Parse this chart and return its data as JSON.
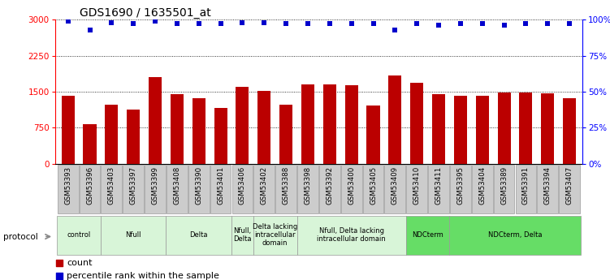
{
  "title": "GDS1690 / 1635501_at",
  "samples": [
    "GSM53393",
    "GSM53396",
    "GSM53403",
    "GSM53397",
    "GSM53399",
    "GSM53408",
    "GSM53390",
    "GSM53401",
    "GSM53406",
    "GSM53402",
    "GSM53388",
    "GSM53398",
    "GSM53392",
    "GSM53400",
    "GSM53405",
    "GSM53409",
    "GSM53410",
    "GSM53411",
    "GSM53395",
    "GSM53404",
    "GSM53389",
    "GSM53391",
    "GSM53394",
    "GSM53407"
  ],
  "counts": [
    1420,
    830,
    1230,
    1120,
    1800,
    1450,
    1370,
    1160,
    1600,
    1510,
    1230,
    1660,
    1650,
    1640,
    1210,
    1840,
    1690,
    1450,
    1410,
    1420,
    1480,
    1480,
    1460,
    1360
  ],
  "percentiles": [
    99,
    93,
    98,
    97,
    99,
    97,
    97,
    97,
    98,
    98,
    97,
    97,
    97,
    97,
    97,
    93,
    97,
    96,
    97,
    97,
    96,
    97,
    97,
    97
  ],
  "groups": [
    {
      "label": "control",
      "start": 0,
      "end": 2,
      "color": "#d8f5d8"
    },
    {
      "label": "Nfull",
      "start": 2,
      "end": 5,
      "color": "#d8f5d8"
    },
    {
      "label": "Delta",
      "start": 5,
      "end": 8,
      "color": "#d8f5d8"
    },
    {
      "label": "Nfull,\nDelta",
      "start": 8,
      "end": 9,
      "color": "#d8f5d8"
    },
    {
      "label": "Delta lacking\nintracellular\ndomain",
      "start": 9,
      "end": 11,
      "color": "#d8f5d8"
    },
    {
      "label": "Nfull, Delta lacking\nintracellular domain",
      "start": 11,
      "end": 16,
      "color": "#d8f5d8"
    },
    {
      "label": "NDCterm",
      "start": 16,
      "end": 18,
      "color": "#66dd66"
    },
    {
      "label": "NDCterm, Delta",
      "start": 18,
      "end": 24,
      "color": "#66dd66"
    }
  ],
  "bar_color": "#bb0000",
  "dot_color": "#0000cc",
  "fig_bg": "#ffffff",
  "plot_bg": "#ffffff",
  "label_bg": "#cccccc",
  "ylim_left": [
    0,
    3000
  ],
  "ylim_right": [
    0,
    100
  ],
  "yticks_left": [
    0,
    750,
    1500,
    2250,
    3000
  ],
  "yticks_right": [
    0,
    25,
    50,
    75,
    100
  ]
}
